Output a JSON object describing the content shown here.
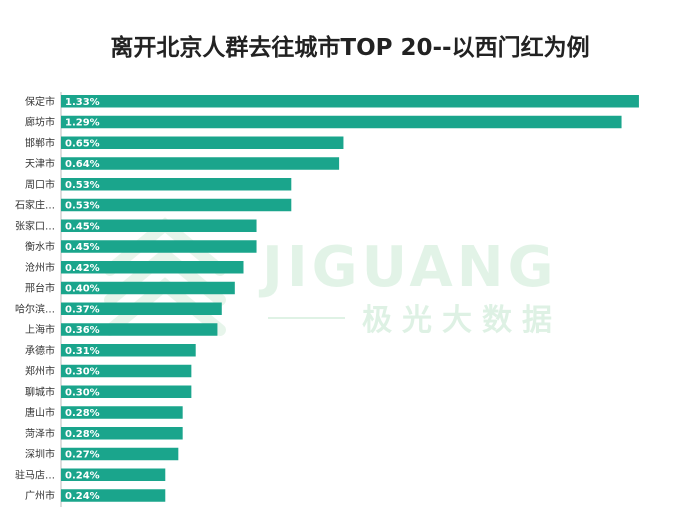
{
  "chart_data": {
    "type": "bar",
    "orientation": "horizontal",
    "title": "离开北京人群去往城市TOP 20--以西门红为例",
    "categories": [
      "保定市",
      "廊坊市",
      "邯郸市",
      "天津市",
      "周口市",
      "石家庄…",
      "张家口…",
      "衡水市",
      "沧州市",
      "邢台市",
      "哈尔滨…",
      "上海市",
      "承德市",
      "郑州市",
      "聊城市",
      "唐山市",
      "菏泽市",
      "深圳市",
      "驻马店…",
      "广州市"
    ],
    "values": [
      1.33,
      1.29,
      0.65,
      0.64,
      0.53,
      0.53,
      0.45,
      0.45,
      0.42,
      0.4,
      0.37,
      0.36,
      0.31,
      0.3,
      0.3,
      0.28,
      0.28,
      0.27,
      0.24,
      0.24
    ],
    "value_labels": [
      "1.33%",
      "1.29%",
      "0.65%",
      "0.64%",
      "0.53%",
      "0.53%",
      "0.45%",
      "0.45%",
      "0.42%",
      "0.40%",
      "0.37%",
      "0.36%",
      "0.31%",
      "0.30%",
      "0.30%",
      "0.28%",
      "0.28%",
      "0.27%",
      "0.24%",
      "0.24%"
    ],
    "xlim": [
      0,
      1.39
    ],
    "grid": false,
    "legend": "none",
    "bar_color": "#1aa58c"
  },
  "watermark": {
    "brand": "JIGUANG",
    "subtitle": "极光大数据",
    "color": "#7ecb96"
  }
}
